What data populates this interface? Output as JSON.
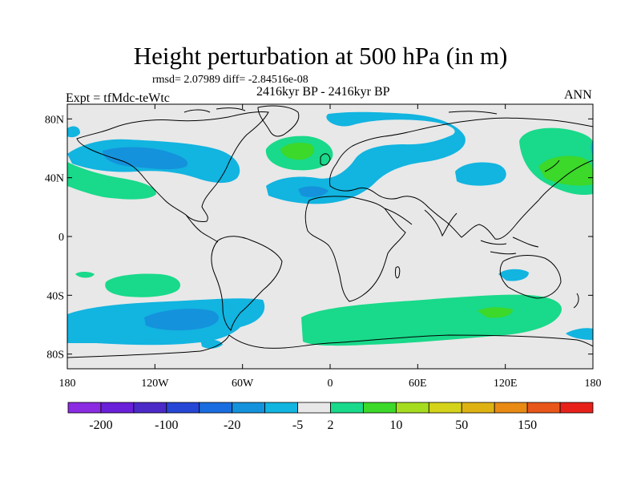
{
  "title": "Height perturbation at 500 hPa (in m)",
  "stats": "rmsd= 2.07989 diff= -2.84516e-08",
  "period": "2416kyr BP - 2416kyr BP",
  "experiment": "Expt = tfMdc-teWtc",
  "season": "ANN",
  "map": {
    "lon_range": [
      -180,
      180
    ],
    "lat_range": [
      -90,
      90
    ],
    "lat_ticks": [
      {
        "value": 80,
        "label": "80N"
      },
      {
        "value": 40,
        "label": "40N"
      },
      {
        "value": 0,
        "label": "0"
      },
      {
        "value": -40,
        "label": "40S"
      },
      {
        "value": -80,
        "label": "80S"
      }
    ],
    "lon_ticks": [
      {
        "value": -180,
        "label": "180"
      },
      {
        "value": -120,
        "label": "120W"
      },
      {
        "value": -60,
        "label": "60W"
      },
      {
        "value": 0,
        "label": "0"
      },
      {
        "value": 60,
        "label": "60E"
      },
      {
        "value": 120,
        "label": "120E"
      },
      {
        "value": 180,
        "label": "180"
      }
    ],
    "background_color": "#e8e8e8"
  },
  "colorbar": {
    "colors": [
      "#8b2be2",
      "#6a1fd8",
      "#4b2ac8",
      "#2646d6",
      "#1a6de0",
      "#1592dc",
      "#12b4e0",
      "#e8e8e8",
      "#19d98a",
      "#3cd82a",
      "#a6dc1f",
      "#d4d21a",
      "#dfb214",
      "#e88a14",
      "#e8561a",
      "#e8201a"
    ],
    "labels": [
      {
        "index": 1,
        "text": "-200"
      },
      {
        "index": 3,
        "text": "-100"
      },
      {
        "index": 5,
        "text": "-20"
      },
      {
        "index": 7,
        "text": "-5"
      },
      {
        "index": 8,
        "text": "2"
      },
      {
        "index": 10,
        "text": "10"
      },
      {
        "index": 12,
        "text": "50"
      },
      {
        "index": 14,
        "text": "150"
      }
    ]
  },
  "anomaly_regions": [
    {
      "name": "north-america-negative",
      "color": "#12b4e0",
      "label": "-5"
    },
    {
      "name": "north-america-core",
      "color": "#1592dc",
      "label": "-20"
    },
    {
      "name": "north-atlantic-positive",
      "color": "#19d98a",
      "label": "2"
    },
    {
      "name": "north-atlantic-core",
      "color": "#3cd82a",
      "label": "10"
    },
    {
      "name": "eurasia-negative",
      "color": "#12b4e0",
      "label": "-5"
    },
    {
      "name": "north-pacific-positive",
      "color": "#19d98a",
      "label": "2"
    },
    {
      "name": "southern-ocean-negative",
      "color": "#12b4e0",
      "label": "-5"
    },
    {
      "name": "southern-ocean-positive",
      "color": "#19d98a",
      "label": "2"
    }
  ]
}
